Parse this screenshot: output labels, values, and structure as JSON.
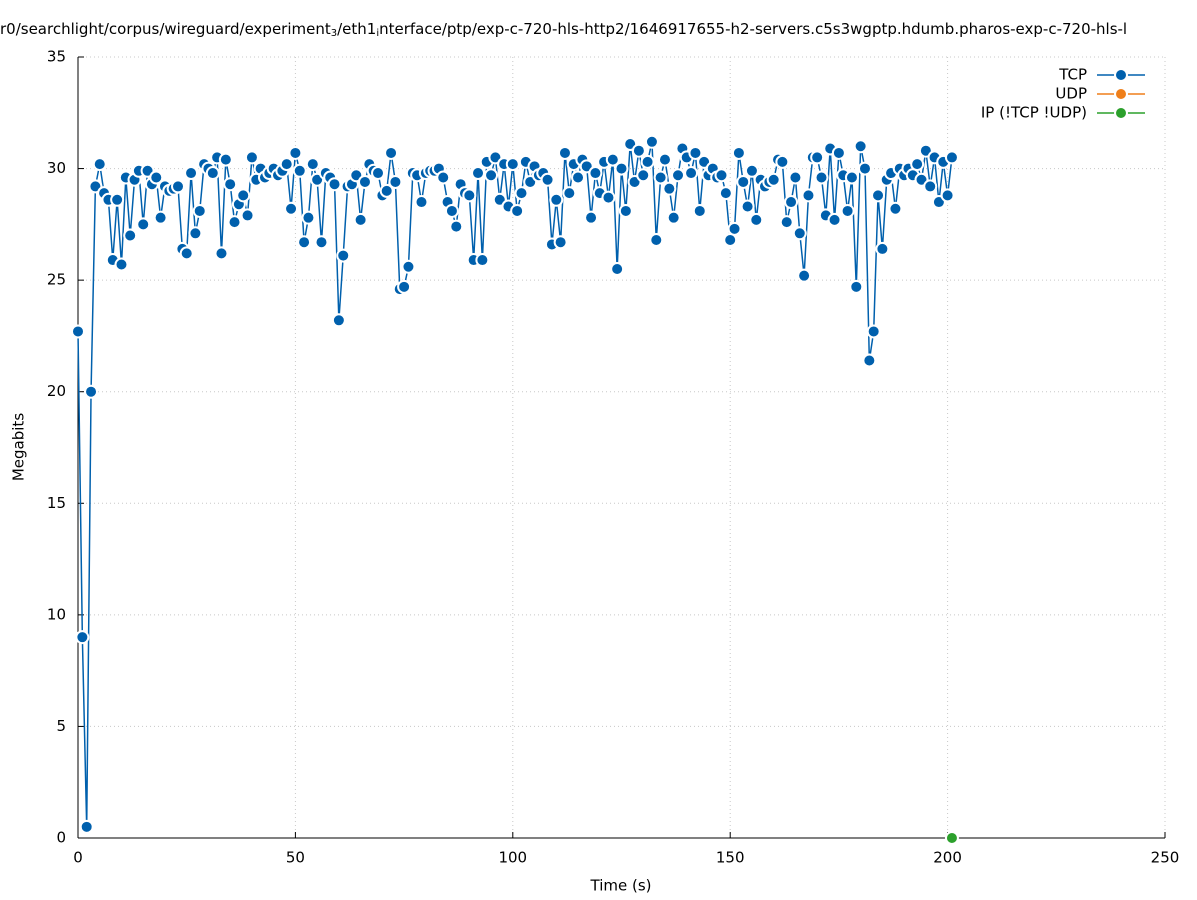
{
  "chart_data": {
    "type": "line",
    "title": [
      "r0/searchlight/corpus/wireguard/experiment",
      "3",
      "/eth1",
      "i",
      "nterface/ptp/exp-c-720-hls-http2/1646917655-h2-servers.c5s3wgptp.hdumb.pharos-exp-c-720-hls-l"
    ],
    "xlabel": "Time (s)",
    "ylabel": "Megabits",
    "xlim": [
      0,
      250
    ],
    "xticks": [
      0,
      50,
      100,
      150,
      200,
      250
    ],
    "ylim": [
      0,
      35
    ],
    "yticks": [
      0,
      5,
      10,
      15,
      20,
      25,
      30,
      35
    ],
    "grid": true,
    "legend": "upper right",
    "series": [
      {
        "name": "TCP",
        "color": "#0060ad",
        "x": [
          0,
          1,
          2,
          3,
          4,
          5,
          6,
          7,
          8,
          9,
          10,
          11,
          12,
          13,
          14,
          15,
          16,
          17,
          18,
          19,
          20,
          21,
          22,
          23,
          24,
          25,
          26,
          27,
          28,
          29,
          30,
          31,
          32,
          33,
          34,
          35,
          36,
          37,
          38,
          39,
          40,
          41,
          42,
          43,
          44,
          45,
          46,
          47,
          48,
          49,
          50,
          51,
          52,
          53,
          54,
          55,
          56,
          57,
          58,
          59,
          60,
          61,
          62,
          63,
          64,
          65,
          66,
          67,
          68,
          69,
          70,
          71,
          72,
          73,
          74,
          75,
          76,
          77,
          78,
          79,
          80,
          81,
          82,
          83,
          84,
          85,
          86,
          87,
          88,
          89,
          90,
          91,
          92,
          93,
          94,
          95,
          96,
          97,
          98,
          99,
          100,
          101,
          102,
          103,
          104,
          105,
          106,
          107,
          108,
          109,
          110,
          111,
          112,
          113,
          114,
          115,
          116,
          117,
          118,
          119,
          120,
          121,
          122,
          123,
          124,
          125,
          126,
          127,
          128,
          129,
          130,
          131,
          132,
          133,
          134,
          135,
          136,
          137,
          138,
          139,
          140,
          141,
          142,
          143,
          144,
          145,
          146,
          147,
          148,
          149,
          150,
          151,
          152,
          153,
          154,
          155,
          156,
          157,
          158,
          159,
          160,
          161,
          162,
          163,
          164,
          165,
          166,
          167,
          168,
          169,
          170,
          171,
          172,
          173,
          174,
          175,
          176,
          177,
          178,
          179,
          180,
          181,
          182,
          183,
          184,
          185,
          186,
          187,
          188,
          189,
          190,
          191,
          192,
          193,
          194,
          195,
          196,
          197,
          198,
          199,
          200,
          201
        ],
        "values": [
          22.7,
          9.0,
          0.5,
          20.0,
          29.2,
          30.2,
          28.9,
          28.6,
          25.9,
          28.6,
          25.7,
          29.6,
          27.0,
          29.5,
          29.9,
          27.5,
          29.9,
          29.3,
          29.6,
          27.8,
          29.2,
          29.0,
          29.1,
          29.2,
          26.4,
          26.2,
          29.8,
          27.1,
          28.1,
          30.2,
          30.0,
          29.8,
          30.5,
          26.2,
          30.4,
          29.3,
          27.6,
          28.4,
          28.8,
          27.9,
          30.5,
          29.5,
          30.0,
          29.6,
          29.8,
          30.0,
          29.7,
          29.9,
          30.2,
          28.2,
          30.7,
          29.9,
          26.7,
          27.8,
          30.2,
          29.5,
          26.7,
          29.8,
          29.6,
          29.3,
          23.2,
          26.1,
          29.2,
          29.3,
          29.7,
          27.7,
          29.4,
          30.2,
          29.9,
          29.8,
          28.8,
          29.0,
          30.7,
          29.4,
          24.6,
          24.7,
          25.6,
          29.8,
          29.7,
          28.5,
          29.8,
          29.9,
          29.9,
          30.0,
          29.6,
          28.5,
          28.1,
          27.4,
          29.3,
          28.9,
          28.8,
          25.9,
          29.8,
          25.9,
          30.3,
          29.7,
          30.5,
          28.6,
          30.2,
          28.3,
          30.2,
          28.1,
          28.9,
          30.3,
          29.4,
          30.1,
          29.7,
          29.8,
          29.5,
          26.6,
          28.6,
          26.7,
          30.7,
          28.9,
          30.2,
          29.6,
          30.4,
          30.1,
          27.8,
          29.8,
          28.9,
          30.3,
          28.7,
          30.4,
          25.5,
          30.0,
          28.1,
          31.1,
          29.4,
          30.8,
          29.7,
          30.3,
          31.2,
          26.8,
          29.6,
          30.4,
          29.1,
          27.8,
          29.7,
          30.9,
          30.5,
          29.8,
          30.7,
          28.1,
          30.3,
          29.7,
          30.0,
          29.6,
          29.7,
          28.9,
          26.8,
          27.3,
          30.7,
          29.4,
          28.3,
          29.9,
          27.7,
          29.5,
          29.2,
          29.4,
          29.5,
          30.4,
          30.3,
          27.6,
          28.5,
          29.6,
          27.1,
          25.2,
          28.8,
          30.5,
          30.5,
          29.6,
          27.9,
          30.9,
          27.7,
          30.7,
          29.7,
          28.1,
          29.6,
          24.7,
          31.0,
          30.0,
          21.4,
          22.7,
          28.8,
          26.4,
          29.5,
          29.8,
          28.2,
          30.0,
          29.7,
          30.0,
          29.7,
          30.2,
          29.5,
          30.8,
          29.2,
          30.5,
          28.5,
          30.3,
          28.8,
          30.5
        ]
      },
      {
        "name": "UDP",
        "color": "#ef7f1a",
        "x": [],
        "values": []
      },
      {
        "name": "IP (!TCP  !UDP)",
        "color": "#2ca02c",
        "x": [
          201
        ],
        "values": [
          0
        ]
      }
    ]
  }
}
